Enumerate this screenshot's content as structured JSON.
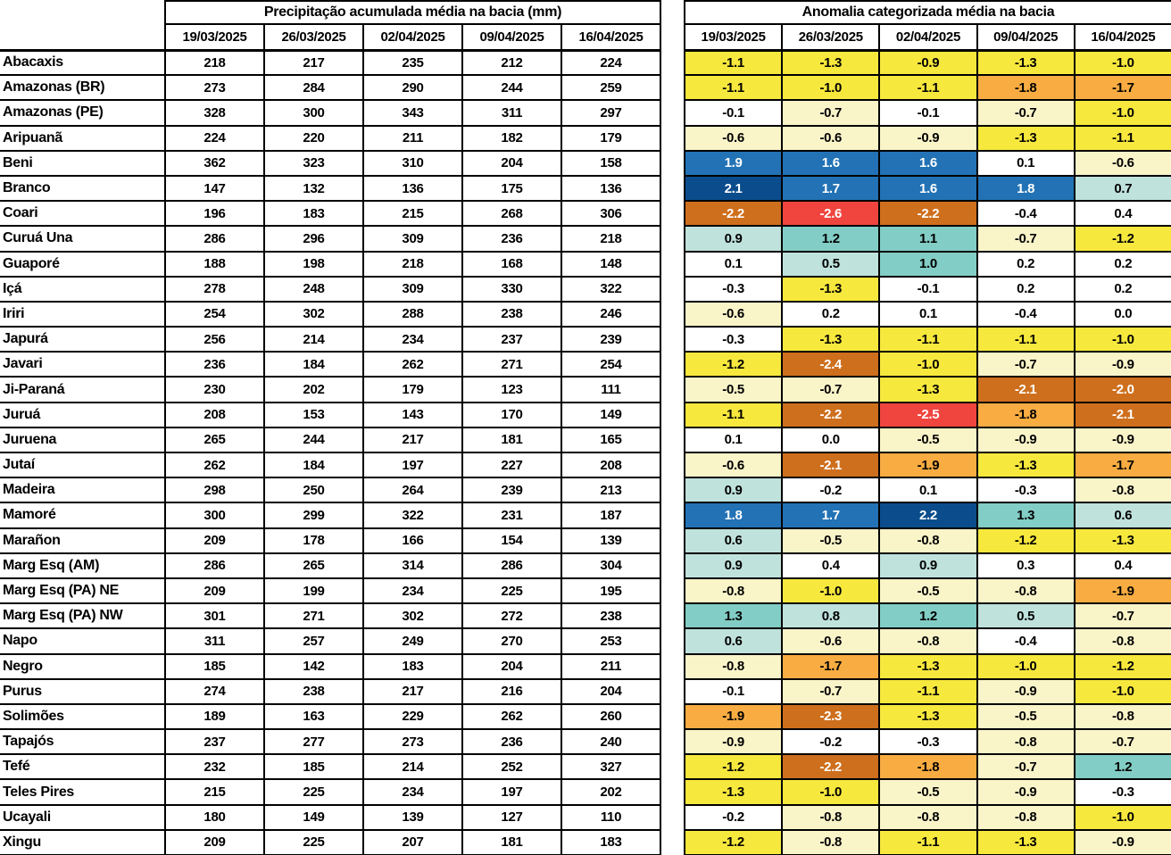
{
  "chart_data": {
    "type": "heatmap",
    "description_visible_titles": [
      "Precipitação acumulada média na bacia (mm)",
      "Anomalia categorizada média na bacia"
    ],
    "basins": [
      "Abacaxis",
      "Amazonas (BR)",
      "Amazonas (PE)",
      "Aripuanã",
      "Beni",
      "Branco",
      "Coari",
      "Curuá Una",
      "Guaporé",
      "Içá",
      "Iriri",
      "Japurá",
      "Javari",
      "Ji-Paraná",
      "Juruá",
      "Juruena",
      "Jutaí",
      "Madeira",
      "Mamoré",
      "Marañon",
      "Marg Esq (AM)",
      "Marg Esq (PA) NE",
      "Marg Esq (PA) NW",
      "Napo",
      "Negro",
      "Purus",
      "Solimões",
      "Tapajós",
      "Tefé",
      "Teles Pires",
      "Ucayali",
      "Xingu"
    ],
    "dates": [
      "19/03/2025",
      "26/03/2025",
      "02/04/2025",
      "09/04/2025",
      "16/04/2025"
    ],
    "series": [
      {
        "name": "Precipitação acumulada média na bacia (mm)",
        "kind": "precipitation_mm",
        "values": [
          [
            218,
            217,
            235,
            212,
            224
          ],
          [
            273,
            284,
            290,
            244,
            259
          ],
          [
            328,
            300,
            343,
            311,
            297
          ],
          [
            224,
            220,
            211,
            182,
            179
          ],
          [
            362,
            323,
            310,
            204,
            158
          ],
          [
            147,
            132,
            136,
            175,
            136
          ],
          [
            196,
            183,
            215,
            268,
            306
          ],
          [
            286,
            296,
            309,
            236,
            218
          ],
          [
            188,
            198,
            218,
            168,
            148
          ],
          [
            278,
            248,
            309,
            330,
            322
          ],
          [
            254,
            302,
            288,
            238,
            246
          ],
          [
            256,
            214,
            234,
            237,
            239
          ],
          [
            236,
            184,
            262,
            271,
            254
          ],
          [
            230,
            202,
            179,
            123,
            111
          ],
          [
            208,
            153,
            143,
            170,
            149
          ],
          [
            265,
            244,
            217,
            181,
            165
          ],
          [
            262,
            184,
            197,
            227,
            208
          ],
          [
            298,
            250,
            264,
            239,
            213
          ],
          [
            300,
            299,
            322,
            231,
            187
          ],
          [
            209,
            178,
            166,
            154,
            139
          ],
          [
            286,
            265,
            314,
            286,
            304
          ],
          [
            209,
            199,
            234,
            225,
            195
          ],
          [
            301,
            271,
            302,
            272,
            238
          ],
          [
            311,
            257,
            249,
            270,
            253
          ],
          [
            185,
            142,
            183,
            204,
            211
          ],
          [
            274,
            238,
            217,
            216,
            204
          ],
          [
            189,
            163,
            229,
            262,
            260
          ],
          [
            237,
            277,
            273,
            236,
            240
          ],
          [
            232,
            185,
            214,
            252,
            327
          ],
          [
            215,
            225,
            234,
            197,
            202
          ],
          [
            180,
            149,
            139,
            127,
            110
          ],
          [
            209,
            225,
            207,
            181,
            183
          ]
        ]
      },
      {
        "name": "Anomalia categorizada média na bacia",
        "kind": "categorized_anomaly",
        "values": [
          [
            -1.1,
            -1.3,
            -0.9,
            -1.3,
            -1.0
          ],
          [
            -1.1,
            -1.0,
            -1.1,
            -1.8,
            -1.7
          ],
          [
            -0.1,
            -0.7,
            -0.1,
            -0.7,
            -1.0
          ],
          [
            -0.6,
            -0.6,
            -0.9,
            -1.3,
            -1.1
          ],
          [
            1.9,
            1.6,
            1.6,
            0.1,
            -0.6
          ],
          [
            2.1,
            1.7,
            1.6,
            1.8,
            0.7
          ],
          [
            -2.2,
            -2.6,
            -2.2,
            -0.4,
            0.4
          ],
          [
            0.9,
            1.2,
            1.1,
            -0.7,
            -1.2
          ],
          [
            0.1,
            0.5,
            1.0,
            0.2,
            0.2
          ],
          [
            -0.3,
            -1.3,
            -0.1,
            0.2,
            0.2
          ],
          [
            -0.6,
            0.2,
            0.1,
            -0.4,
            0.0
          ],
          [
            -0.3,
            -1.3,
            -1.1,
            -1.1,
            -1.0
          ],
          [
            -1.2,
            -2.4,
            -1.0,
            -0.7,
            -0.9
          ],
          [
            -0.5,
            -0.7,
            -1.3,
            -2.1,
            -2.0
          ],
          [
            -1.1,
            -2.2,
            -2.5,
            -1.8,
            -2.1
          ],
          [
            0.1,
            0.0,
            -0.5,
            -0.9,
            -0.9
          ],
          [
            -0.6,
            -2.1,
            -1.9,
            -1.3,
            -1.7
          ],
          [
            0.9,
            -0.2,
            0.1,
            -0.3,
            -0.8
          ],
          [
            1.8,
            1.7,
            2.2,
            1.3,
            0.6
          ],
          [
            0.6,
            -0.5,
            -0.8,
            -1.2,
            -1.3
          ],
          [
            0.9,
            0.4,
            0.9,
            0.3,
            0.4
          ],
          [
            -0.8,
            -1.0,
            -0.5,
            -0.8,
            -1.9
          ],
          [
            1.3,
            0.8,
            1.2,
            0.5,
            -0.7
          ],
          [
            0.6,
            -0.6,
            -0.8,
            -0.4,
            -0.8
          ],
          [
            -0.8,
            -1.7,
            -1.3,
            -1.0,
            -1.2
          ],
          [
            -0.1,
            -0.7,
            -1.1,
            -0.9,
            -1.0
          ],
          [
            -1.9,
            -2.3,
            -1.3,
            -0.5,
            -0.8
          ],
          [
            -0.9,
            -0.2,
            -0.3,
            -0.8,
            -0.7
          ],
          [
            -1.2,
            -2.2,
            -1.8,
            -0.7,
            1.2
          ],
          [
            -1.3,
            -1.0,
            -0.5,
            -0.9,
            -0.3
          ],
          [
            -0.2,
            -0.8,
            -0.8,
            -0.8,
            -1.0
          ],
          [
            -1.2,
            -0.8,
            -1.1,
            -1.3,
            -0.9
          ]
        ],
        "cell_colors": [
          [
            "y",
            "y",
            "y",
            "y",
            "y"
          ],
          [
            "y",
            "y",
            "y",
            "o",
            "o"
          ],
          [
            "w",
            "py",
            "w",
            "py",
            "y"
          ],
          [
            "py",
            "py",
            "py",
            "y",
            "y"
          ],
          [
            "b",
            "b",
            "b",
            "w",
            "py"
          ],
          [
            "db",
            "b",
            "b",
            "b",
            "lt"
          ],
          [
            "do",
            "r",
            "do",
            "w",
            "w"
          ],
          [
            "lt",
            "t",
            "t",
            "py",
            "y"
          ],
          [
            "w",
            "lt",
            "t",
            "w",
            "w"
          ],
          [
            "w",
            "y",
            "w",
            "w",
            "w"
          ],
          [
            "py",
            "w",
            "w",
            "w",
            "w"
          ],
          [
            "w",
            "y",
            "y",
            "y",
            "y"
          ],
          [
            "y",
            "do",
            "y",
            "py",
            "py"
          ],
          [
            "py",
            "py",
            "y",
            "do",
            "do"
          ],
          [
            "y",
            "do",
            "r",
            "o",
            "do"
          ],
          [
            "w",
            "w",
            "py",
            "py",
            "py"
          ],
          [
            "py",
            "do",
            "o",
            "y",
            "o"
          ],
          [
            "lt",
            "w",
            "w",
            "w",
            "py"
          ],
          [
            "b",
            "b",
            "db",
            "t",
            "lt"
          ],
          [
            "lt",
            "py",
            "py",
            "y",
            "y"
          ],
          [
            "lt",
            "w",
            "lt",
            "w",
            "w"
          ],
          [
            "py",
            "y",
            "py",
            "py",
            "o"
          ],
          [
            "t",
            "lt",
            "t",
            "lt",
            "py"
          ],
          [
            "lt",
            "py",
            "py",
            "w",
            "py"
          ],
          [
            "py",
            "o",
            "y",
            "y",
            "y"
          ],
          [
            "w",
            "py",
            "y",
            "py",
            "y"
          ],
          [
            "o",
            "do",
            "y",
            "py",
            "py"
          ],
          [
            "py",
            "w",
            "w",
            "py",
            "py"
          ],
          [
            "y",
            "do",
            "o",
            "py",
            "t"
          ],
          [
            "y",
            "y",
            "py",
            "py",
            "w"
          ],
          [
            "w",
            "py",
            "py",
            "py",
            "y"
          ],
          [
            "y",
            "py",
            "y",
            "y",
            "py"
          ]
        ]
      }
    ],
    "palette": {
      "w": {
        "bg": "#FFFFFF",
        "fg": "#000000"
      },
      "py": {
        "bg": "#FAF4C9",
        "fg": "#000000"
      },
      "y": {
        "bg": "#F7E83D",
        "fg": "#000000"
      },
      "o": {
        "bg": "#F8AC42",
        "fg": "#000000"
      },
      "do": {
        "bg": "#CE6F1D",
        "fg": "#FFFFFF"
      },
      "r": {
        "bg": "#F0453F",
        "fg": "#FFFFFF"
      },
      "lt": {
        "bg": "#BFE2DC",
        "fg": "#000000"
      },
      "t": {
        "bg": "#82CDC5",
        "fg": "#000000"
      },
      "b": {
        "bg": "#2272B5",
        "fg": "#FFFFFF"
      },
      "db": {
        "bg": "#0B4D8C",
        "fg": "#FFFFFF"
      }
    }
  }
}
